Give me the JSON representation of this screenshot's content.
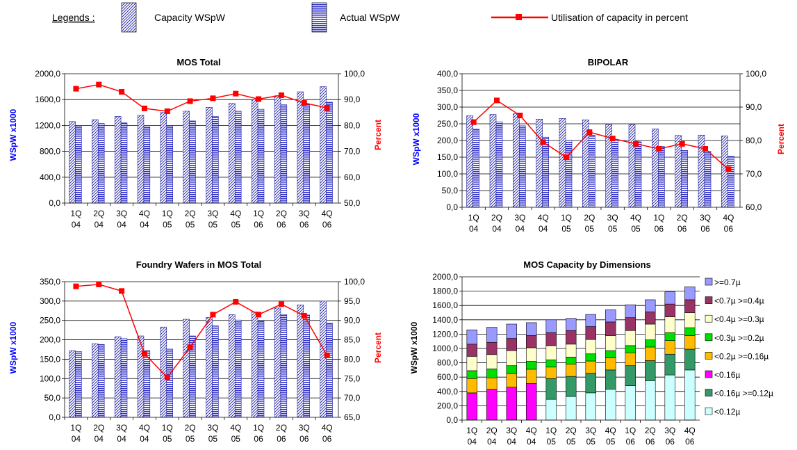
{
  "legend": {
    "heading": "Legends :",
    "capacity": "Capacity  WSpW",
    "actual": "Actual  WSpW",
    "utilisation": "Utilisation of capacity in percent"
  },
  "colors": {
    "capacity_hatch": "#1a1aa0",
    "actual_fill": "#3333cc",
    "percent_line": "#ff0000",
    "left_axis": "#0000ff",
    "right_axis": "#ff0000"
  },
  "chart_data": [
    {
      "id": "mos-total",
      "type": "bar",
      "title": "MOS Total",
      "ylabel": "WSpW x1000",
      "y2label": "Percent",
      "categories": [
        "1Q 04",
        "2Q 04",
        "3Q 04",
        "4Q 04",
        "1Q 05",
        "2Q 05",
        "3Q 05",
        "4Q 05",
        "1Q 06",
        "2Q 06",
        "3Q 06",
        "4Q 06"
      ],
      "ylim": [
        0,
        2000
      ],
      "yticks": [
        "0,0",
        "400,0",
        "800,0",
        "1200,0",
        "1600,0",
        "2000,0"
      ],
      "y2lim": [
        50,
        100
      ],
      "y2ticks": [
        "50,0",
        "60,0",
        "70,0",
        "80,0",
        "90,0",
        "100,0"
      ],
      "series": [
        {
          "name": "Capacity  WSpW",
          "values": [
            1260,
            1290,
            1340,
            1360,
            1400,
            1420,
            1480,
            1540,
            1600,
            1660,
            1720,
            1800
          ]
        },
        {
          "name": "Actual  WSpW",
          "values": [
            1190,
            1230,
            1240,
            1180,
            1190,
            1270,
            1340,
            1420,
            1450,
            1520,
            1530,
            1560
          ]
        },
        {
          "name": "Utilisation of capacity in percent",
          "axis": "right",
          "values": [
            94.2,
            95.8,
            93.0,
            86.6,
            85.5,
            89.4,
            90.5,
            92.3,
            90.2,
            91.7,
            88.7,
            86.8
          ]
        }
      ]
    },
    {
      "id": "bipolar",
      "type": "bar",
      "title": "BIPOLAR",
      "ylabel": "WSpW x1000",
      "y2label": "Percent",
      "categories": [
        "1Q 04",
        "2Q 04",
        "3Q 04",
        "4Q 04",
        "1Q 05",
        "2Q 05",
        "3Q 05",
        "4Q 05",
        "1Q 06",
        "2Q 06",
        "3Q 06",
        "4Q 06"
      ],
      "ylim": [
        0,
        400
      ],
      "yticks": [
        "0,0",
        "50,0",
        "100,0",
        "150,0",
        "200,0",
        "250,0",
        "300,0",
        "350,0",
        "400,0"
      ],
      "y2lim": [
        60,
        100
      ],
      "y2ticks": [
        "60,0",
        "70,0",
        "80,0",
        "90,0",
        "100,0"
      ],
      "series": [
        {
          "name": "Capacity  WSpW",
          "values": [
            274,
            278,
            280,
            264,
            266,
            262,
            248,
            248,
            235,
            215,
            216,
            214
          ]
        },
        {
          "name": "Actual  WSpW",
          "values": [
            234,
            256,
            244,
            210,
            200,
            216,
            200,
            196,
            182,
            170,
            168,
            153
          ]
        },
        {
          "name": "Utilisation of capacity in percent",
          "axis": "right",
          "values": [
            85.5,
            92.0,
            87.5,
            79.5,
            75.0,
            82.5,
            80.6,
            79.0,
            77.5,
            79.0,
            77.5,
            71.4
          ]
        }
      ]
    },
    {
      "id": "foundry",
      "type": "bar",
      "title": "Foundry Wafers in MOS Total",
      "ylabel": "WSpW x1000",
      "y2label": "Percent",
      "categories": [
        "1Q 04",
        "2Q 04",
        "3Q 04",
        "4Q 04",
        "1Q 05",
        "2Q 05",
        "3Q 05",
        "4Q 05",
        "1Q 06",
        "2Q 06",
        "3Q 06",
        "4Q 06"
      ],
      "ylim": [
        0,
        350
      ],
      "yticks": [
        "0,0",
        "50,0",
        "100,0",
        "150,0",
        "200,0",
        "250,0",
        "300,0",
        "350,0"
      ],
      "y2lim": [
        65,
        100
      ],
      "y2ticks": [
        "65,0",
        "70,0",
        "75,0",
        "80,0",
        "85,0",
        "90,0",
        "95,0",
        "100,0"
      ],
      "series": [
        {
          "name": "Capacity  WSpW",
          "values": [
            172,
            190,
            208,
            210,
            233,
            253,
            258,
            265,
            272,
            282,
            290,
            300
          ]
        },
        {
          "name": "Actual  WSpW",
          "values": [
            170,
            188,
            203,
            172,
            176,
            210,
            236,
            251,
            249,
            265,
            264,
            243
          ]
        },
        {
          "name": "Utilisation of capacity in percent",
          "axis": "right",
          "values": [
            98.8,
            99.3,
            97.6,
            81.4,
            75.3,
            83.1,
            91.5,
            94.8,
            91.5,
            94.2,
            91.2,
            81.0
          ]
        }
      ]
    },
    {
      "id": "mos-dims",
      "type": "bar",
      "stacked": true,
      "title": "MOS Capacity by Dimensions",
      "ylabel": "WSpW x1000",
      "categories": [
        "1Q 04",
        "2Q 04",
        "3Q 04",
        "4Q 04",
        "1Q 05",
        "2Q 05",
        "3Q 05",
        "4Q 05",
        "1Q 06",
        "2Q 06",
        "3Q 06",
        "4Q 06"
      ],
      "ylim": [
        0,
        2000
      ],
      "yticks": [
        "0,0",
        "200,0",
        "400,0",
        "600,0",
        "800,0",
        "1000,0",
        "1200,0",
        "1400,0",
        "1600,0",
        "1800,0",
        "2000,0"
      ],
      "legend_position": "right",
      "series": [
        {
          "name": "<0.12µ",
          "color": "#ccffff",
          "values": [
            0,
            0,
            0,
            0,
            290,
            330,
            380,
            430,
            480,
            550,
            630,
            700
          ]
        },
        {
          "name": "<0.16µ >=0.12µ",
          "color": "#339966",
          "values": [
            0,
            0,
            0,
            0,
            290,
            280,
            275,
            270,
            280,
            280,
            290,
            290
          ]
        },
        {
          "name": "<0.16µ",
          "color": "#ff00ff",
          "values": [
            380,
            430,
            460,
            510,
            0,
            0,
            0,
            0,
            0,
            0,
            0,
            0
          ]
        },
        {
          "name": "<0.2µ >=0.16µ",
          "color": "#ffbb00",
          "values": [
            200,
            160,
            190,
            200,
            160,
            170,
            170,
            170,
            180,
            190,
            190,
            190
          ]
        },
        {
          "name": "<0.3µ >=0.2µ",
          "color": "#00dd00",
          "values": [
            110,
            125,
            110,
            110,
            100,
            100,
            100,
            100,
            100,
            100,
            110,
            110
          ]
        },
        {
          "name": "<0.4µ >=0.3µ",
          "color": "#ffffcc",
          "values": [
            200,
            200,
            210,
            190,
            200,
            180,
            200,
            210,
            210,
            220,
            220,
            210
          ]
        },
        {
          "name": "<0.7µ >=0.4µ",
          "color": "#993366",
          "values": [
            170,
            170,
            170,
            170,
            180,
            190,
            180,
            190,
            180,
            170,
            180,
            180
          ]
        },
        {
          "name": ">=0.7µ",
          "color": "#9999ff",
          "values": [
            200,
            210,
            200,
            180,
            180,
            170,
            170,
            170,
            180,
            170,
            170,
            180
          ]
        }
      ]
    }
  ]
}
